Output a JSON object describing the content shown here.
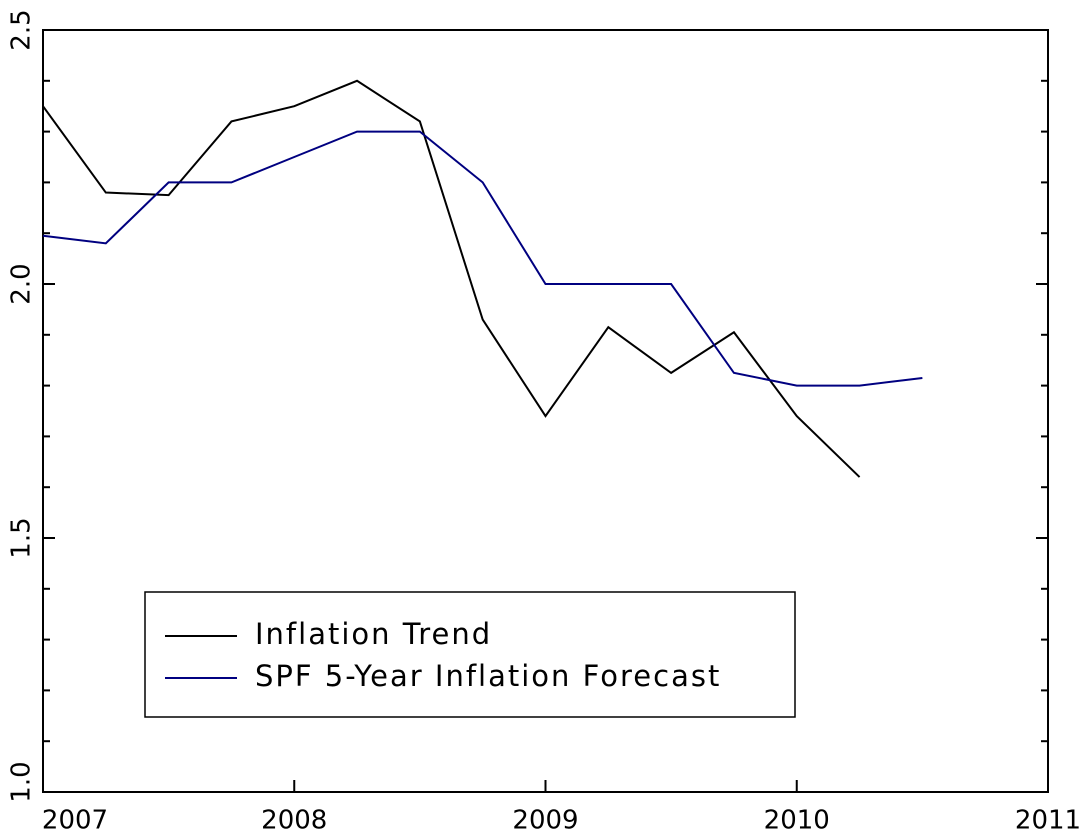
{
  "chart_data": {
    "type": "line",
    "x": [
      2007,
      2007.25,
      2007.5,
      2007.75,
      2008,
      2008.25,
      2008.5,
      2008.75,
      2009,
      2009.25,
      2009.5,
      2009.75,
      2010,
      2010.25,
      2010.5
    ],
    "series": [
      {
        "name": "Inflation Trend",
        "color": "#000000",
        "values": [
          2.35,
          2.18,
          2.175,
          2.32,
          2.35,
          2.4,
          2.32,
          1.93,
          1.74,
          1.915,
          1.825,
          1.905,
          1.74,
          1.62,
          null
        ]
      },
      {
        "name": "SPF 5-Year Inflation Forecast",
        "color": "#000080",
        "values": [
          2.095,
          2.08,
          2.2,
          2.2,
          2.25,
          2.3,
          2.3,
          2.2,
          2.0,
          2.0,
          2.0,
          1.825,
          1.8,
          1.8,
          1.815
        ]
      }
    ],
    "xlim": [
      2007,
      2011
    ],
    "xticks": [
      2007,
      2008,
      2009,
      2010,
      2011
    ],
    "ylim": [
      1.0,
      2.5
    ],
    "yticks": [
      {
        "value": 1.0,
        "label": "1.0"
      },
      1.5,
      {
        "value": 2.0,
        "label": "2.0"
      },
      2.5
    ],
    "yminorticks": [
      1.1,
      1.2,
      1.3,
      1.4,
      1.6,
      1.7,
      1.8,
      1.9,
      2.1,
      2.2,
      2.3,
      2.4
    ],
    "legend": "lower left"
  }
}
